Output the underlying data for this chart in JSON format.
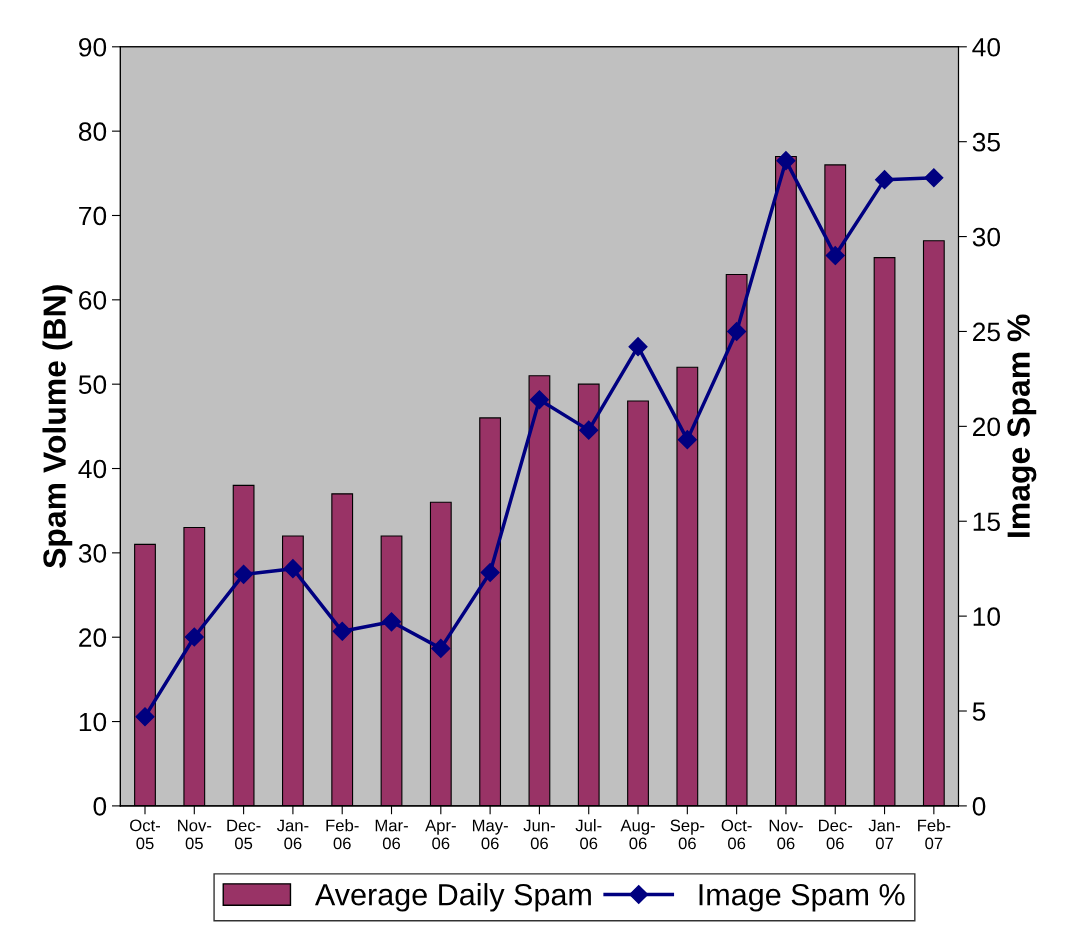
{
  "chart_data": {
    "type": "bar",
    "ylabel": "Spam Volume (BN)",
    "y2label": "Image Spam %",
    "categories": [
      "Oct-05",
      "Nov-05",
      "Dec-05",
      "Jan-06",
      "Feb-06",
      "Mar-06",
      "Apr-06",
      "May-06",
      "Jun-06",
      "Jul-06",
      "Aug-06",
      "Sep-06",
      "Oct-06",
      "Nov-06",
      "Dec-06",
      "Jan-07",
      "Feb-07"
    ],
    "series": [
      {
        "name": "Average Daily Spam",
        "color": "#993366",
        "values": [
          31,
          33,
          38,
          32,
          37,
          32,
          36,
          46,
          51,
          50,
          48,
          52,
          63,
          77,
          76,
          65,
          67
        ]
      },
      {
        "name": "Image Spam %",
        "type": "line",
        "axis": "y2",
        "color": "#000080",
        "marker": "diamond",
        "values": [
          4.7,
          8.9,
          12.2,
          12.5,
          9.2,
          9.7,
          8.3,
          12.3,
          21.4,
          19.8,
          24.2,
          19.3,
          25.0,
          34.0,
          29.0,
          33.0,
          33.1
        ]
      }
    ],
    "ylim": [
      0,
      90
    ],
    "yticks": [
      0,
      10,
      20,
      30,
      40,
      50,
      60,
      70,
      80,
      90
    ],
    "y2lim": [
      0,
      40
    ],
    "y2ticks": [
      0,
      5,
      10,
      15,
      20,
      25,
      30,
      35,
      40
    ],
    "grid": false,
    "legend": "bottom"
  }
}
